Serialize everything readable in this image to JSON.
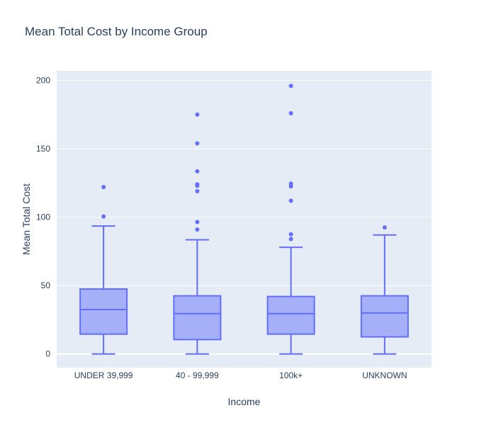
{
  "chart_data": {
    "type": "box",
    "title": "Mean Total Cost by Income Group",
    "xlabel": "Income",
    "ylabel": "Mean Total Cost",
    "ylim": [
      -10,
      207
    ],
    "yticks": [
      0,
      50,
      100,
      150,
      200
    ],
    "grid": true,
    "colors": {
      "plot_bg": "#e5ecf6",
      "grid": "#ffffff",
      "box_fill": "#a5b0f8",
      "box_line": "#636efa",
      "outlier": "#636efa",
      "text": "#2a3f5f"
    },
    "categories": [
      "UNDER 39,999",
      "40 - 99,999",
      "100k+",
      "UNKNOWN"
    ],
    "boxes": [
      {
        "category": "UNDER 39,999",
        "min": 0,
        "q1": 14.5,
        "median": 32.5,
        "q3": 47.5,
        "max": 93.5,
        "outliers": [
          100.5,
          122
        ]
      },
      {
        "category": "40 - 99,999",
        "min": 0,
        "q1": 10.5,
        "median": 29.5,
        "q3": 42.5,
        "max": 83.5,
        "outliers": [
          91,
          96.5,
          119,
          123,
          124,
          133.5,
          154,
          175
        ]
      },
      {
        "category": "100k+",
        "min": 0,
        "q1": 14.5,
        "median": 29.5,
        "q3": 42,
        "max": 78,
        "outliers": [
          84,
          87.5,
          112,
          122.5,
          124.5,
          176,
          196
        ]
      },
      {
        "category": "UNKNOWN",
        "min": 0,
        "q1": 12.5,
        "median": 30,
        "q3": 42.5,
        "max": 87,
        "outliers": [
          92.5
        ]
      }
    ]
  }
}
